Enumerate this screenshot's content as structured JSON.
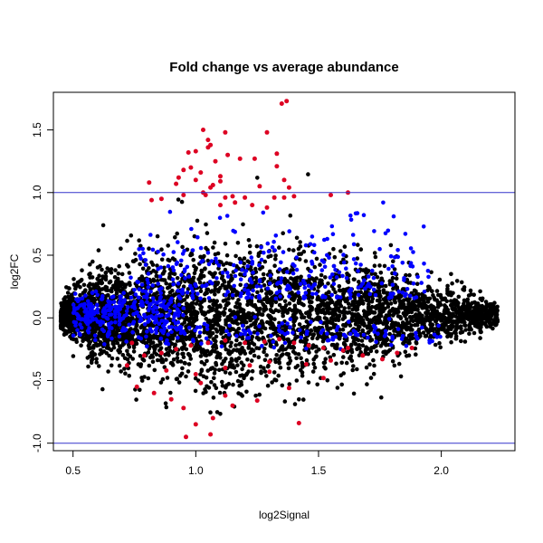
{
  "chart_data": {
    "type": "scatter",
    "title": "Fold change vs average abundance",
    "xlabel": "log2Signal",
    "ylabel": "log2FC",
    "xlim": [
      0.42,
      2.3
    ],
    "ylim": [
      -1.06,
      1.8
    ],
    "x_ticks": [
      0.5,
      1.0,
      1.5,
      2.0
    ],
    "x_tick_labels": [
      "0.5",
      "1.0",
      "1.5",
      "2.0"
    ],
    "y_ticks": [
      -1.0,
      -0.5,
      0.0,
      0.5,
      1.0,
      1.5
    ],
    "y_tick_labels": [
      "-1.0",
      "-0.5",
      "0.0",
      "0.5",
      "1.0",
      "1.5"
    ],
    "grid": false,
    "reference_lines": [
      {
        "orientation": "horizontal",
        "y": 1.0,
        "color": "#3333cc"
      },
      {
        "orientation": "horizontal",
        "y": -1.0,
        "color": "#3333cc"
      }
    ],
    "series": [
      {
        "color": "#000000",
        "points_generated": 4200,
        "cloud": {
          "x_min": 0.45,
          "x_max": 2.23,
          "center_y": 0.02
        }
      },
      {
        "color": "#0000ff",
        "points_generated": 700
      },
      {
        "color": "#dd0022",
        "points": [
          [
            0.96,
            -0.95
          ],
          [
            1.06,
            -0.93
          ],
          [
            1.42,
            -0.84
          ],
          [
            1.35,
            1.71
          ],
          [
            1.37,
            1.73
          ],
          [
            1.03,
            1.5
          ],
          [
            1.12,
            1.48
          ],
          [
            1.05,
            1.42
          ],
          [
            1.06,
            1.38
          ],
          [
            1.29,
            1.48
          ],
          [
            1.05,
            1.36
          ],
          [
            1.0,
            1.33
          ],
          [
            1.33,
            1.31
          ],
          [
            0.97,
            1.32
          ],
          [
            1.13,
            1.3
          ],
          [
            1.18,
            1.27
          ],
          [
            1.08,
            1.25
          ],
          [
            1.24,
            1.27
          ],
          [
            1.33,
            1.21
          ],
          [
            0.95,
            1.18
          ],
          [
            0.98,
            1.2
          ],
          [
            0.93,
            1.12
          ],
          [
            1.02,
            1.16
          ],
          [
            1.1,
            1.13
          ],
          [
            1.0,
            1.1
          ],
          [
            0.92,
            1.07
          ],
          [
            1.07,
            1.06
          ],
          [
            1.06,
            1.04
          ],
          [
            0.81,
            1.08
          ],
          [
            1.36,
            1.1
          ],
          [
            1.26,
            1.05
          ],
          [
            1.12,
            0.96
          ],
          [
            1.04,
            0.98
          ],
          [
            1.15,
            0.97
          ],
          [
            1.2,
            0.96
          ],
          [
            0.86,
            0.95
          ],
          [
            0.95,
            0.98
          ],
          [
            1.32,
            0.96
          ],
          [
            1.36,
            0.96
          ],
          [
            1.4,
            0.97
          ],
          [
            1.16,
            0.92
          ],
          [
            1.23,
            0.9
          ],
          [
            0.82,
            0.94
          ],
          [
            1.1,
            1.09
          ],
          [
            1.03,
            1.0
          ],
          [
            1.62,
            1.0
          ],
          [
            1.55,
            0.98
          ],
          [
            1.38,
            1.04
          ],
          [
            1.1,
            0.9
          ],
          [
            1.29,
            0.88
          ],
          [
            0.79,
            -0.3
          ],
          [
            0.86,
            -0.28
          ],
          [
            0.92,
            -0.25
          ],
          [
            0.98,
            -0.22
          ],
          [
            1.05,
            -0.2
          ],
          [
            1.12,
            -0.18
          ],
          [
            1.2,
            -0.2
          ],
          [
            1.28,
            -0.19
          ],
          [
            1.34,
            -0.17
          ],
          [
            1.4,
            -0.2
          ],
          [
            1.46,
            -0.22
          ],
          [
            1.52,
            -0.24
          ],
          [
            1.6,
            -0.26
          ],
          [
            1.68,
            -0.3
          ],
          [
            1.76,
            -0.33
          ],
          [
            1.82,
            -0.28
          ],
          [
            1.88,
            -0.24
          ],
          [
            0.72,
            -0.38
          ],
          [
            0.88,
            -0.42
          ],
          [
            1.0,
            -0.45
          ],
          [
            1.12,
            -0.4
          ],
          [
            1.22,
            -0.38
          ],
          [
            1.3,
            -0.35
          ],
          [
            1.45,
            -0.37
          ],
          [
            1.55,
            -0.34
          ],
          [
            0.83,
            -0.6
          ],
          [
            0.9,
            -0.65
          ],
          [
            1.02,
            -0.52
          ],
          [
            1.12,
            -0.62
          ],
          [
            1.25,
            -0.66
          ],
          [
            1.38,
            -0.56
          ],
          [
            1.0,
            -0.85
          ],
          [
            1.07,
            -0.8
          ],
          [
            0.95,
            -0.72
          ],
          [
            1.15,
            -0.7
          ],
          [
            0.76,
            -0.55
          ],
          [
            1.52,
            -0.48
          ],
          [
            0.74,
            -0.2
          ],
          [
            1.3,
            -0.43
          ],
          [
            1.62,
            -0.24
          ]
        ]
      }
    ]
  }
}
